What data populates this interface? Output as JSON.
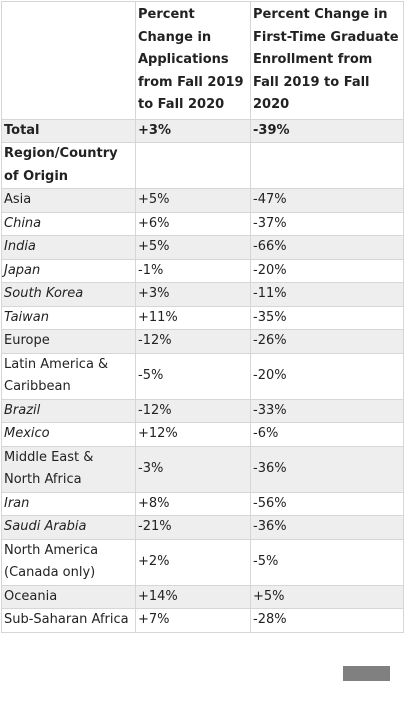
{
  "table": {
    "header": [
      "Percent Change in Applications from Fall 2019 to Fall 2020",
      "Percent Change in First-Time Graduate Enrollment from Fall 2019 to Fall 2020"
    ],
    "rows": [
      [
        "Total",
        "+3%",
        "-39%"
      ],
      [
        "Region/Country of Origin"
      ],
      [
        "Asia",
        "+5%",
        "-47%"
      ],
      [
        "China",
        "+6%",
        "-37%"
      ],
      [
        "India",
        "+5%",
        "-66%"
      ],
      [
        "Japan",
        "-1%",
        "-20%"
      ],
      [
        "South Korea",
        "+3%",
        "-11%"
      ],
      [
        "Taiwan",
        "+11%",
        "-35%"
      ],
      [
        "Europe",
        "-12%",
        "-26%"
      ],
      [
        "Latin America & Caribbean",
        "-5%",
        "-20%"
      ],
      [
        "Brazil",
        "-12%",
        "-33%"
      ],
      [
        "Mexico",
        "+12%",
        "-6%"
      ],
      [
        "Middle East & North Africa",
        "-3%",
        "-36%"
      ],
      [
        "Iran",
        "+8%",
        "-56%"
      ],
      [
        "Saudi Arabia",
        "-21%",
        "-36%"
      ],
      [
        "North America (Canada only)",
        "+2%",
        "-5%"
      ],
      [
        "Oceania",
        "+14%",
        "+5%"
      ],
      [
        "Sub-Saharan Africa",
        "+7%",
        "-28%"
      ]
    ]
  }
}
